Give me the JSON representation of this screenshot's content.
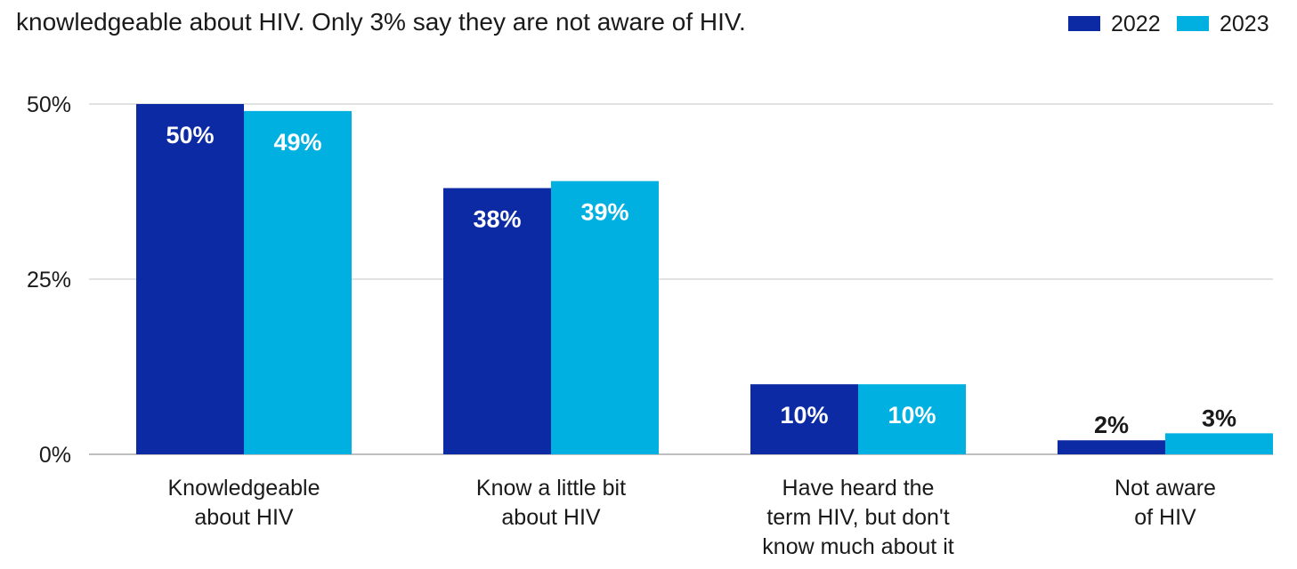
{
  "subtitle": "knowledgeable about HIV. Only 3% say they are not aware of HIV.",
  "colors": {
    "series_2022": "#0b2aa3",
    "series_2023": "#00b0e0",
    "grid": "#d9d9d9",
    "axis": "#bfbfbf"
  },
  "chart_data": {
    "type": "bar",
    "categories": [
      [
        "Knowledgeable",
        "about HIV"
      ],
      [
        "Know a little bit",
        "about HIV"
      ],
      [
        "Have heard the",
        "term HIV, but don't",
        "know much about it"
      ],
      [
        "Not aware",
        "of HIV"
      ]
    ],
    "series": [
      {
        "name": "2022",
        "values": [
          50,
          38,
          10,
          2
        ],
        "labels": [
          "50%",
          "38%",
          "10%",
          "2%"
        ]
      },
      {
        "name": "2023",
        "values": [
          49,
          39,
          10,
          3
        ],
        "labels": [
          "49%",
          "39%",
          "10%",
          "3%"
        ]
      }
    ],
    "ylim": [
      0,
      50
    ],
    "yticks": [
      0,
      25,
      50
    ],
    "ytick_labels": [
      "0%",
      "25%",
      "50%"
    ],
    "legend": "top-right",
    "grid": true
  }
}
